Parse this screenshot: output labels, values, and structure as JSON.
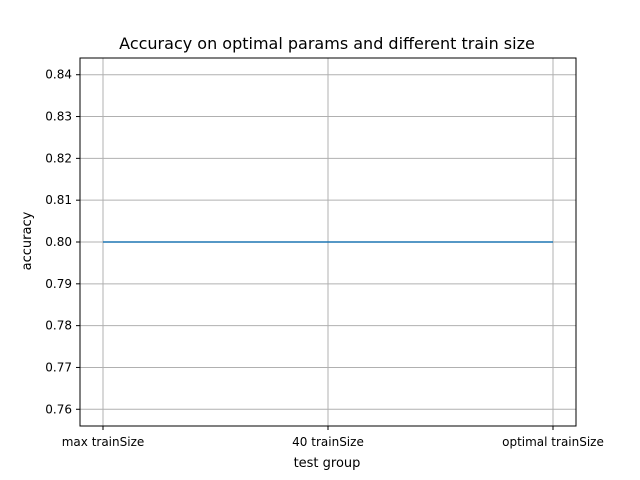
{
  "chart_data": {
    "type": "line",
    "title": "Accuracy on optimal params and different train size",
    "xlabel": "test group",
    "ylabel": "accuracy",
    "categories": [
      "max trainSize",
      "40 trainSize",
      "optimal trainSize"
    ],
    "series": [
      {
        "values": [
          0.8,
          0.8,
          0.8
        ],
        "color": "#1f77b4"
      }
    ],
    "ylim": [
      0.756,
      0.844
    ],
    "yticks": [
      0.76,
      0.77,
      0.78,
      0.79,
      0.8,
      0.81,
      0.82,
      0.83,
      0.84
    ],
    "ytick_labels": [
      "0.76",
      "0.77",
      "0.78",
      "0.79",
      "0.80",
      "0.81",
      "0.82",
      "0.83",
      "0.84"
    ],
    "grid": true
  }
}
